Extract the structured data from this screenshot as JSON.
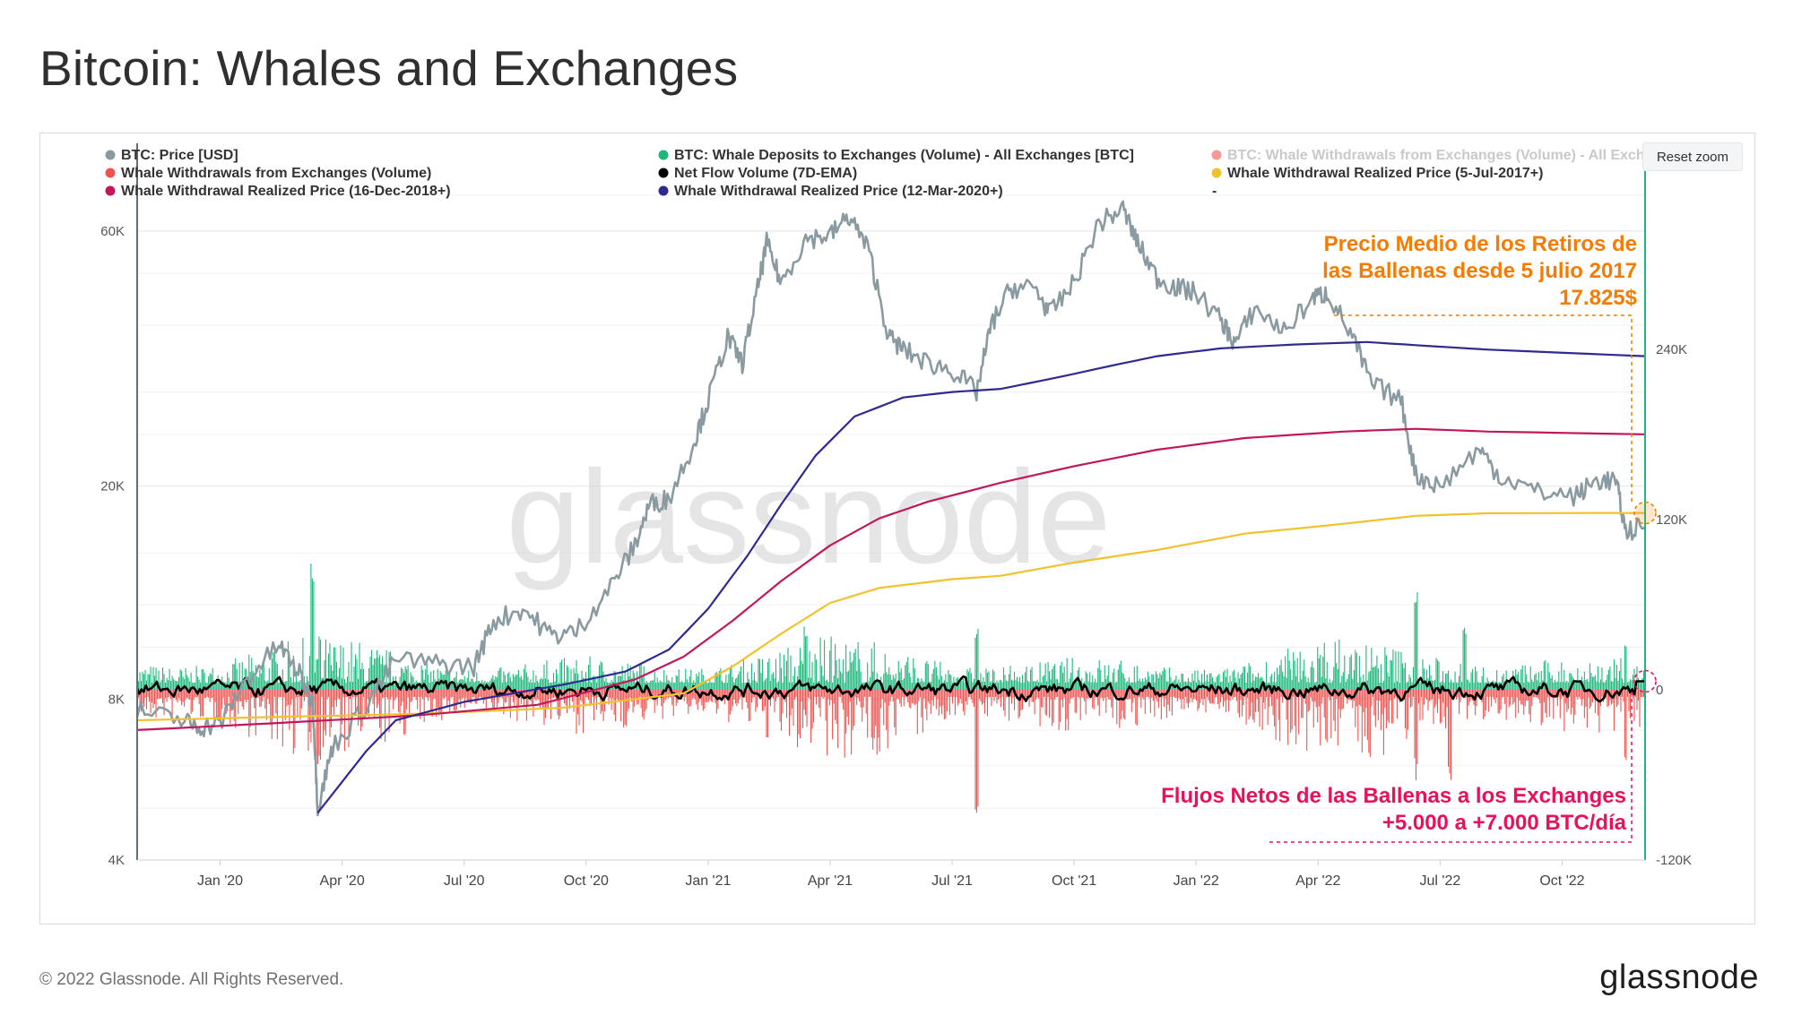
{
  "page": {
    "title": "Bitcoin: Whales and Exchanges",
    "footer_copyright": "© 2022 Glassnode. All Rights Reserved.",
    "footer_brand": "glassnode",
    "watermark": "glassnode",
    "reset_zoom_label": "Reset zoom"
  },
  "colors": {
    "price": "#8a9aa1",
    "deposits": "#1db87a",
    "withdrawals": "#ef5350",
    "netflow": "#000000",
    "rp2017": "#f2c22e",
    "rp2018": "#c2185b",
    "rp2020": "#2f2a8f",
    "annotation_orange": "#f57c00",
    "annotation_pink": "#e8115b",
    "right_axis_line": "#1db87a",
    "left_axis_line": "#5f6f78"
  },
  "legend": [
    {
      "label": "BTC: Price [USD]",
      "color": "#8a9aa1",
      "faded": false
    },
    {
      "label": "BTC: Whale Deposits to Exchanges (Volume) - All Exchanges [BTC]",
      "color": "#1db87a",
      "faded": false
    },
    {
      "label": "BTC: Whale Withdrawals from Exchanges (Volume) - All Exch",
      "color": "#ef5350",
      "faded": true
    },
    {
      "label": "Whale Withdrawals from Exchanges (Volume)",
      "color": "#ef5350",
      "faded": false
    },
    {
      "label": "Net Flow Volume (7D-EMA)",
      "color": "#000000",
      "faded": false
    },
    {
      "label": "Whale Withdrawal Realized Price (5-Jul-2017+)",
      "color": "#f2c22e",
      "faded": false
    },
    {
      "label": "Whale Withdrawal Realized Price (16-Dec-2018+)",
      "color": "#c2185b",
      "faded": false
    },
    {
      "label": "Whale Withdrawal Realized Price (12-Mar-2020+)",
      "color": "#2f2a8f",
      "faded": false
    },
    {
      "label": "-",
      "color": null,
      "faded": false
    }
  ],
  "annotations": {
    "top": [
      "Precio Medio de los Retiros de",
      "las Ballenas desde 5 julio 2017",
      "17.825$"
    ],
    "bottom": [
      "Flujos Netos de las Ballenas a los Exchanges",
      "+5.000 a +7.000 BTC/día"
    ]
  },
  "chart_data": {
    "type": "line",
    "title": "Bitcoin: Whales and Exchanges",
    "x_ticks": [
      "Jan '20",
      "Apr '20",
      "Jul '20",
      "Oct '20",
      "Jan '21",
      "Apr '21",
      "Jul '21",
      "Oct '21",
      "Jan '22",
      "Apr '22",
      "Jul '22",
      "Oct '22"
    ],
    "x_range": [
      2019.83,
      2022.92
    ],
    "left_axis": {
      "scale": "log",
      "ticks": [
        "4K",
        "8K",
        "20K",
        "60K"
      ],
      "tick_values": [
        4000,
        8000,
        20000,
        60000
      ],
      "range": [
        4000,
        75000
      ]
    },
    "right_axis": {
      "scale": "linear",
      "ticks": [
        "-120K",
        "0",
        "120K",
        "240K"
      ],
      "tick_values": [
        -120000,
        0,
        120000,
        240000
      ],
      "range": [
        -120000,
        360000
      ]
    },
    "price_usd": [
      [
        2019.83,
        7600
      ],
      [
        2019.92,
        7300
      ],
      [
        2019.96,
        7100
      ],
      [
        2020.0,
        7200
      ],
      [
        2020.05,
        8600
      ],
      [
        2020.12,
        10100
      ],
      [
        2020.16,
        9000
      ],
      [
        2020.19,
        7900
      ],
      [
        2020.2,
        5000
      ],
      [
        2020.23,
        6500
      ],
      [
        2020.3,
        7800
      ],
      [
        2020.36,
        9500
      ],
      [
        2020.45,
        9300
      ],
      [
        2020.52,
        9200
      ],
      [
        2020.56,
        11200
      ],
      [
        2020.62,
        11800
      ],
      [
        2020.68,
        10500
      ],
      [
        2020.73,
        10700
      ],
      [
        2020.8,
        13000
      ],
      [
        2020.85,
        15500
      ],
      [
        2020.88,
        18500
      ],
      [
        2020.92,
        19000
      ],
      [
        2020.97,
        24000
      ],
      [
        2021.0,
        29000
      ],
      [
        2021.04,
        38000
      ],
      [
        2021.07,
        34000
      ],
      [
        2021.1,
        46000
      ],
      [
        2021.12,
        57000
      ],
      [
        2021.15,
        48000
      ],
      [
        2021.2,
        58000
      ],
      [
        2021.25,
        59000
      ],
      [
        2021.29,
        64000
      ],
      [
        2021.33,
        55000
      ],
      [
        2021.37,
        38000
      ],
      [
        2021.4,
        36000
      ],
      [
        2021.45,
        34000
      ],
      [
        2021.5,
        33000
      ],
      [
        2021.55,
        30000
      ],
      [
        2021.58,
        40000
      ],
      [
        2021.62,
        47000
      ],
      [
        2021.67,
        47000
      ],
      [
        2021.7,
        42000
      ],
      [
        2021.75,
        48000
      ],
      [
        2021.8,
        62000
      ],
      [
        2021.85,
        66000
      ],
      [
        2021.88,
        57000
      ],
      [
        2021.92,
        49000
      ],
      [
        2021.96,
        47000
      ],
      [
        2022.0,
        46000
      ],
      [
        2022.05,
        41000
      ],
      [
        2022.08,
        37000
      ],
      [
        2022.12,
        43000
      ],
      [
        2022.18,
        39000
      ],
      [
        2022.24,
        45000
      ],
      [
        2022.27,
        46000
      ],
      [
        2022.32,
        38000
      ],
      [
        2022.36,
        31000
      ],
      [
        2022.42,
        29000
      ],
      [
        2022.45,
        21000
      ],
      [
        2022.5,
        20000
      ],
      [
        2022.58,
        23500
      ],
      [
        2022.62,
        21000
      ],
      [
        2022.7,
        19500
      ],
      [
        2022.78,
        19200
      ],
      [
        2022.82,
        20500
      ],
      [
        2022.86,
        20500
      ],
      [
        2022.88,
        16500
      ],
      [
        2022.92,
        16800
      ]
    ],
    "realized_price_2017": [
      [
        2019.83,
        7300
      ],
      [
        2020.1,
        7400
      ],
      [
        2020.4,
        7500
      ],
      [
        2020.7,
        7700
      ],
      [
        2020.95,
        8200
      ],
      [
        2021.05,
        9200
      ],
      [
        2021.15,
        10600
      ],
      [
        2021.25,
        12100
      ],
      [
        2021.35,
        12900
      ],
      [
        2021.5,
        13400
      ],
      [
        2021.6,
        13600
      ],
      [
        2021.75,
        14400
      ],
      [
        2021.92,
        15200
      ],
      [
        2022.1,
        16300
      ],
      [
        2022.3,
        17000
      ],
      [
        2022.45,
        17600
      ],
      [
        2022.6,
        17800
      ],
      [
        2022.92,
        17825
      ]
    ],
    "realized_price_2018": [
      [
        2019.83,
        7000
      ],
      [
        2020.1,
        7200
      ],
      [
        2020.4,
        7450
      ],
      [
        2020.65,
        7800
      ],
      [
        2020.85,
        8700
      ],
      [
        2020.95,
        9600
      ],
      [
        2021.05,
        11200
      ],
      [
        2021.15,
        13300
      ],
      [
        2021.25,
        15500
      ],
      [
        2021.35,
        17400
      ],
      [
        2021.45,
        18700
      ],
      [
        2021.6,
        20300
      ],
      [
        2021.75,
        21800
      ],
      [
        2021.92,
        23400
      ],
      [
        2022.1,
        24600
      ],
      [
        2022.3,
        25300
      ],
      [
        2022.45,
        25600
      ],
      [
        2022.6,
        25300
      ],
      [
        2022.92,
        25000
      ]
    ],
    "realized_price_2020": [
      [
        2020.2,
        4900
      ],
      [
        2020.25,
        5600
      ],
      [
        2020.3,
        6400
      ],
      [
        2020.36,
        7300
      ],
      [
        2020.5,
        7900
      ],
      [
        2020.7,
        8500
      ],
      [
        2020.83,
        9000
      ],
      [
        2020.92,
        9900
      ],
      [
        2021.0,
        11800
      ],
      [
        2021.08,
        14800
      ],
      [
        2021.15,
        18500
      ],
      [
        2021.22,
        22800
      ],
      [
        2021.3,
        27000
      ],
      [
        2021.4,
        29300
      ],
      [
        2021.5,
        30000
      ],
      [
        2021.6,
        30400
      ],
      [
        2021.72,
        32000
      ],
      [
        2021.82,
        33500
      ],
      [
        2021.92,
        35000
      ],
      [
        2022.05,
        36200
      ],
      [
        2022.2,
        36800
      ],
      [
        2022.35,
        37200
      ],
      [
        2022.45,
        36700
      ],
      [
        2022.6,
        36000
      ],
      [
        2022.92,
        35000
      ]
    ],
    "whale_deposits_btc_daily_range": [
      5000,
      30000
    ],
    "whale_deposits_btc_peaks": [
      [
        2020.19,
        90000
      ],
      [
        2021.2,
        50000
      ],
      [
        2021.55,
        45000
      ],
      [
        2022.45,
        72000
      ],
      [
        2022.55,
        50000
      ],
      [
        2022.88,
        35000
      ]
    ],
    "whale_withdrawals_btc_daily_range": [
      -40000,
      -5000
    ],
    "whale_withdrawals_btc_peaks": [
      [
        2020.2,
        -55000
      ],
      [
        2021.55,
        -90000
      ],
      [
        2022.45,
        -65000
      ],
      [
        2022.52,
        -75000
      ],
      [
        2022.88,
        -55000
      ]
    ],
    "net_flow_7d_ema_btc_range": [
      -15000,
      15000
    ],
    "net_flow_7d_ema_btc_latest_range": [
      5000,
      7000
    ],
    "marked_points": [
      {
        "series": "Whale Withdrawal Realized Price (5-Jul-2017+)",
        "x": 2022.92,
        "y": 17825
      },
      {
        "series": "Net Flow Volume (7D-EMA)",
        "x": 2022.92,
        "y": 6000
      }
    ]
  }
}
